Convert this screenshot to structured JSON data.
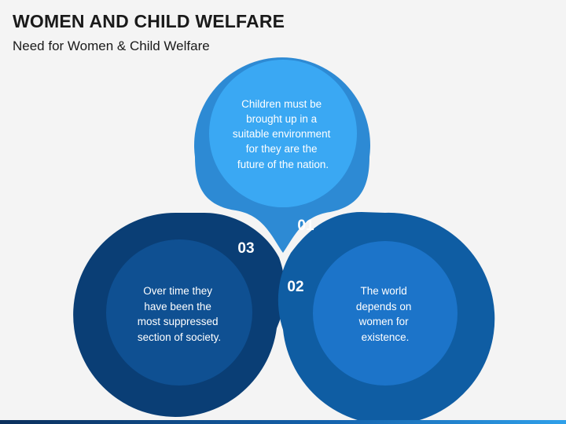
{
  "header": {
    "title": "WOMEN AND CHILD WELFARE",
    "subtitle": "Need for Women & Child Welfare"
  },
  "items": [
    {
      "number": "01",
      "text_lines": [
        "Children must be",
        "brought up in a",
        "suitable environment",
        "for they are the",
        "future of the nation."
      ]
    },
    {
      "number": "02",
      "text_lines": [
        "The world",
        "depends on",
        "women for",
        "existence."
      ]
    },
    {
      "number": "03",
      "text_lines": [
        "Over time they",
        "have been the",
        "most suppressed",
        "section of society."
      ]
    }
  ],
  "colors": {
    "shape_01": "#2d8ad4",
    "circle_01": "#3aa8f3",
    "shape_02": "#0f5da3",
    "circle_02": "#1c74c9",
    "shape_03": "#0a3e75",
    "circle_03": "#0f5092",
    "background": "#f4f4f4"
  }
}
